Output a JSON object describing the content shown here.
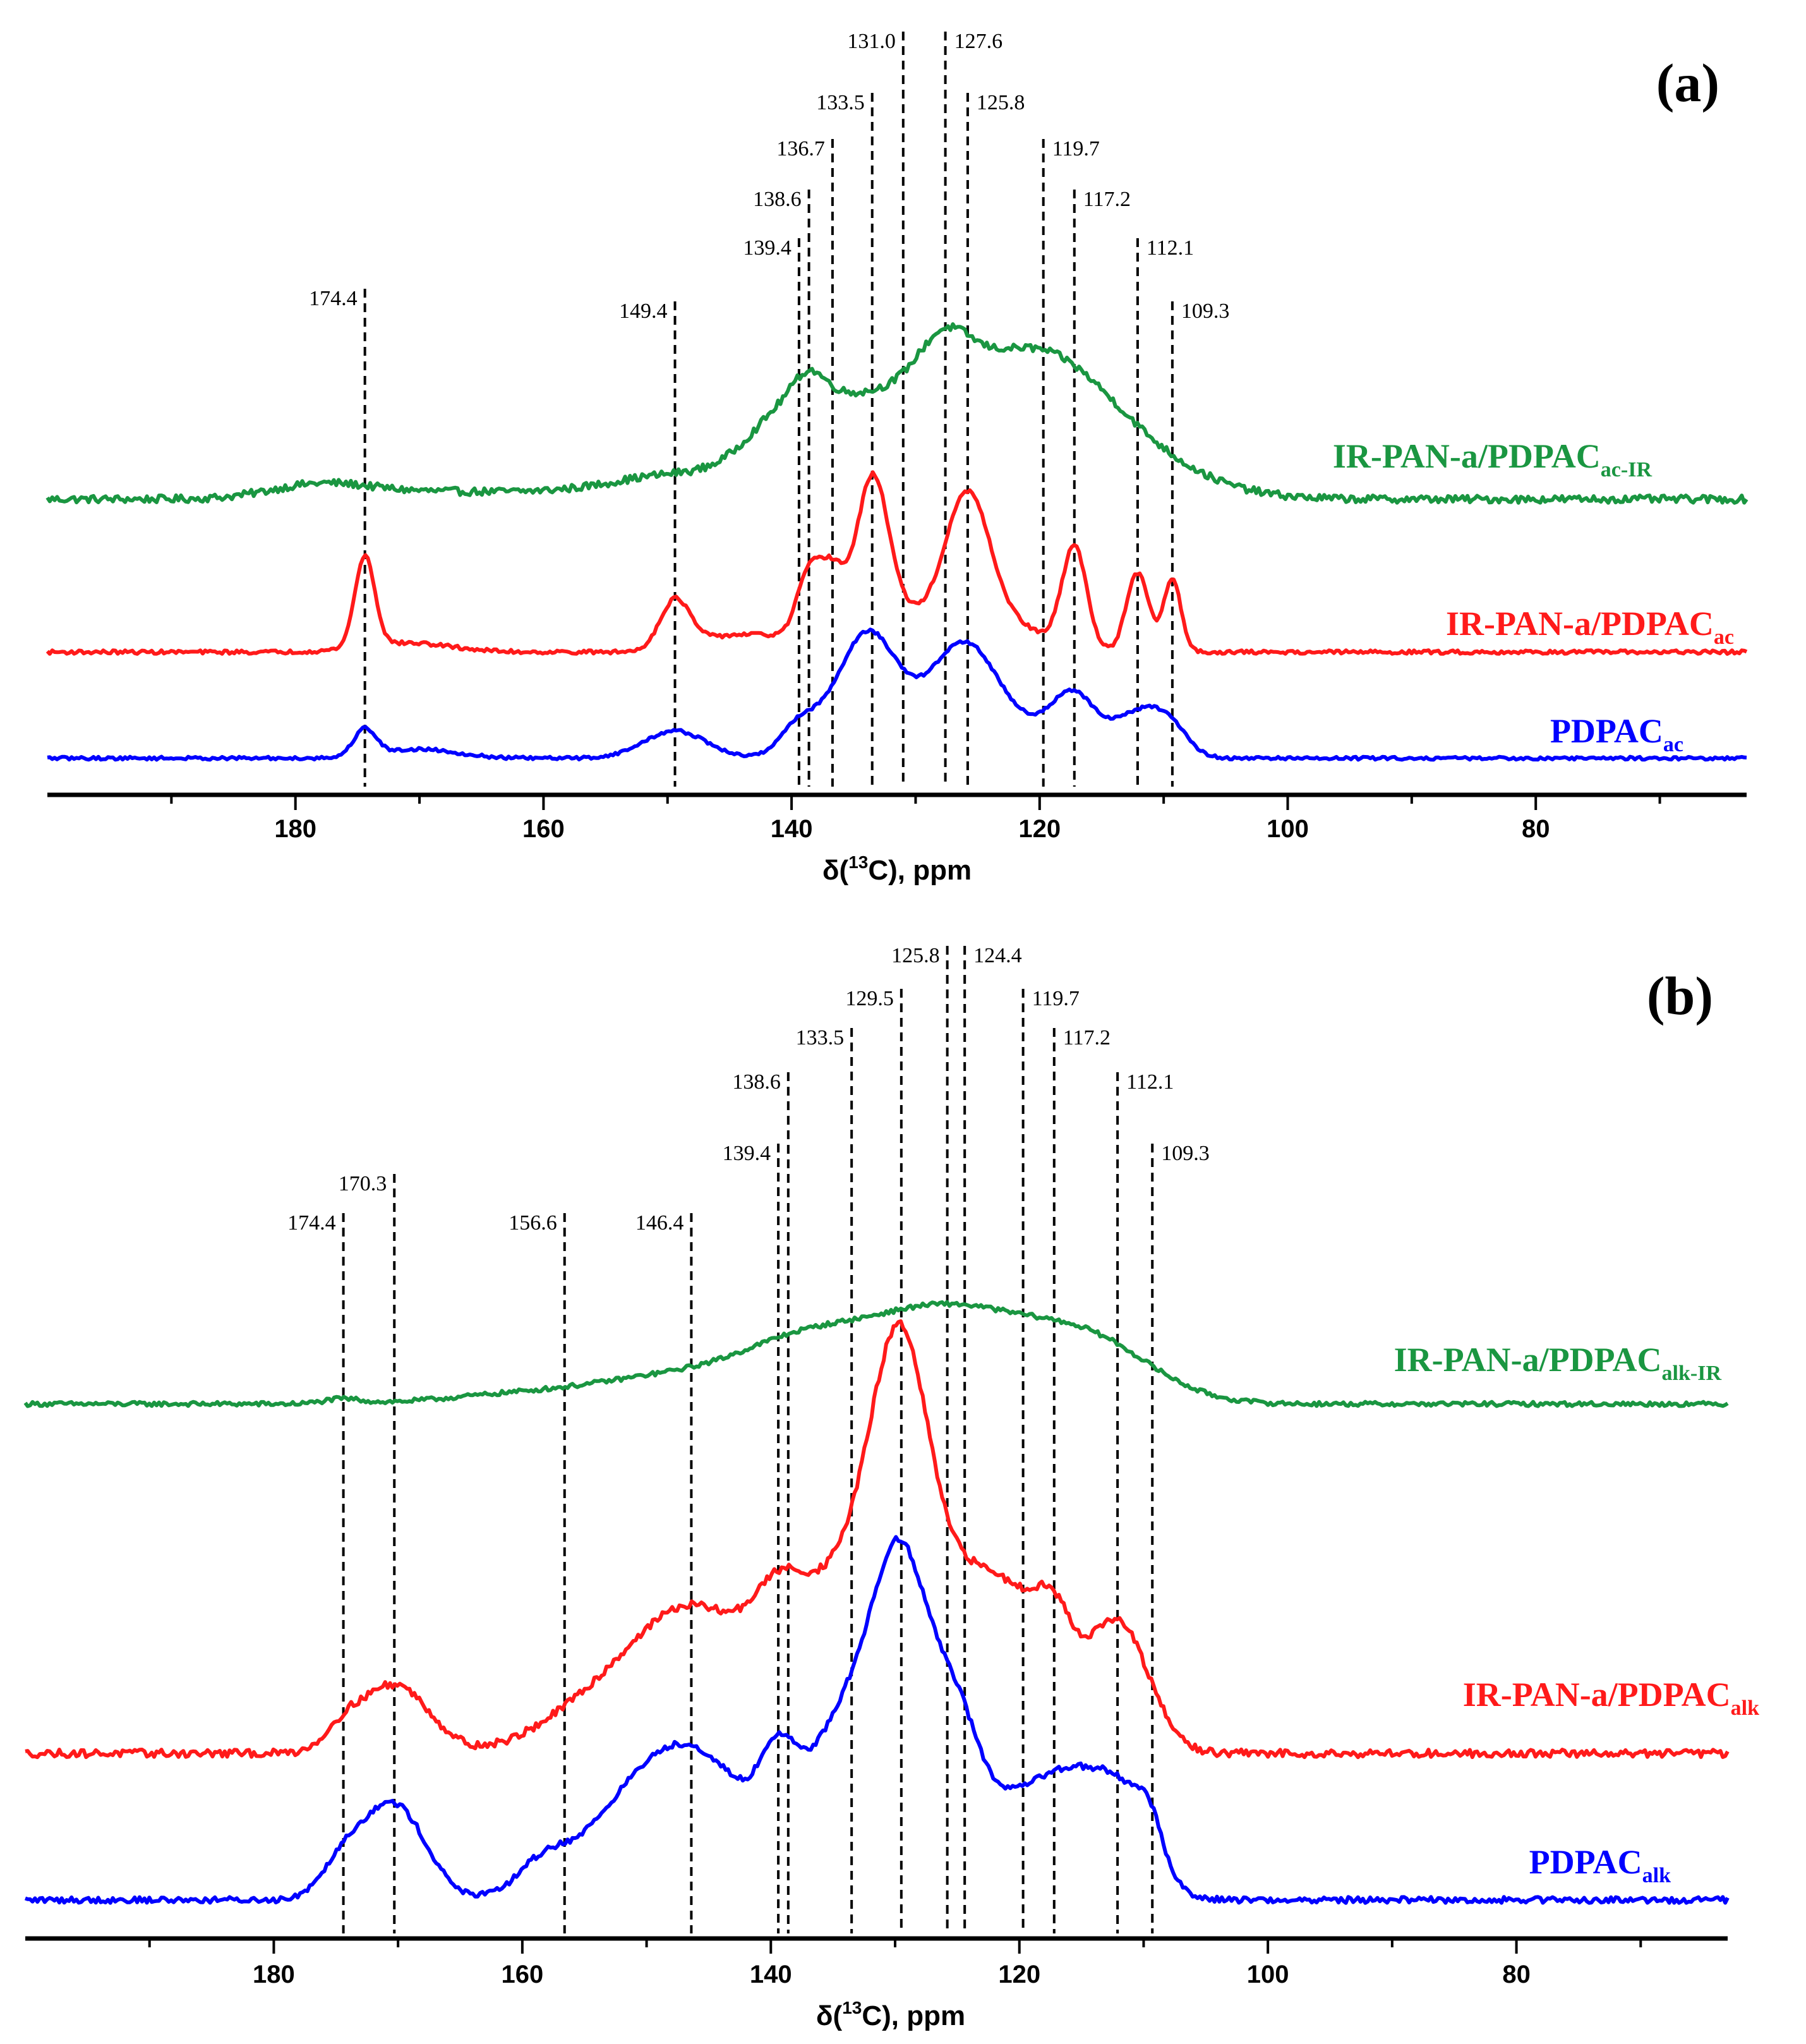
{
  "chart_data": [
    {
      "type": "line",
      "panel": "(a)",
      "xlabel_prefix": "δ(",
      "xlabel_sup": "13",
      "xlabel_suffix": "C), ppm",
      "xlim": [
        200,
        63
      ],
      "major_ticks": [
        180,
        160,
        140,
        120,
        100,
        80
      ],
      "minor_ticks": [
        190,
        170,
        150,
        130,
        110,
        90,
        70
      ],
      "reference_lines": [
        "174.4",
        "149.4",
        "139.4",
        "138.6",
        "136.7",
        "133.5",
        "131.0",
        "127.6",
        "125.8",
        "119.7",
        "117.2",
        "112.1",
        "109.3"
      ],
      "series": [
        {
          "name": "IR-PAN-a/PDPAC",
          "sub": "ac-IR",
          "color": "#1a9641",
          "baseline": 0.0,
          "noise": 0.9,
          "peaks": [
            [
              178,
              3.5,
              4.0
            ],
            [
              170,
              1.0,
              5.0
            ],
            [
              155,
              2.0,
              10.0
            ],
            [
              149.4,
              4.0,
              4.5
            ],
            [
              140,
              16.0,
              3.5
            ],
            [
              138.6,
              5.0,
              1.2
            ],
            [
              131,
              24.0,
              6.0
            ],
            [
              127.6,
              10.0,
              2.0
            ],
            [
              120,
              28.0,
              5.5
            ],
            [
              113,
              8.0,
              6.0
            ]
          ]
        },
        {
          "name": "IR-PAN-a/PDPAC",
          "sub": "ac",
          "color": "#ff1a1a",
          "baseline": 0.0,
          "noise": 0.6,
          "peaks": [
            [
              174.4,
              30.0,
              0.8
            ],
            [
              171,
              3.0,
              3.5
            ],
            [
              149.4,
              16.0,
              1.2
            ],
            [
              146.5,
              3.0,
              2.5
            ],
            [
              142,
              5.0,
              3.0
            ],
            [
              138.6,
              22.0,
              1.0
            ],
            [
              136.7,
              22.0,
              1.0
            ],
            [
              133.5,
              50.0,
              1.3
            ],
            [
              131,
              12.0,
              3.0
            ],
            [
              125.8,
              48.0,
              1.8
            ],
            [
              122,
              8.0,
              2.5
            ],
            [
              117.2,
              34.0,
              1.0
            ],
            [
              112.1,
              26.0,
              0.9
            ],
            [
              109.3,
              24.0,
              0.7
            ]
          ]
        },
        {
          "name": "PDPAC",
          "sub": "ac",
          "color": "#0000ff",
          "baseline": 0.0,
          "noise": 0.5,
          "peaks": [
            [
              174.4,
              9.0,
              0.9
            ],
            [
              170,
              3.0,
              3.0
            ],
            [
              149.4,
              9.0,
              2.5
            ],
            [
              139.5,
              10.0,
              1.5
            ],
            [
              136,
              14.0,
              2.0
            ],
            [
              133.5,
              28.0,
              2.0
            ],
            [
              129.5,
              14.0,
              3.5
            ],
            [
              125.8,
              28.0,
              2.5
            ],
            [
              121,
              8.0,
              3.0
            ],
            [
              117.2,
              18.0,
              1.8
            ],
            [
              112.1,
              14.0,
              2.0
            ],
            [
              109.5,
              8.0,
              1.5
            ]
          ]
        }
      ]
    },
    {
      "type": "line",
      "panel": "(b)",
      "xlabel_prefix": "δ(",
      "xlabel_sup": "13",
      "xlabel_suffix": "C), ppm",
      "xlim": [
        200,
        63
      ],
      "major_ticks": [
        180,
        160,
        140,
        120,
        100,
        80
      ],
      "minor_ticks": [
        190,
        170,
        150,
        130,
        110,
        90,
        70
      ],
      "reference_lines": [
        "174.4",
        "170.3",
        "156.6",
        "146.4",
        "139.4",
        "138.6",
        "133.5",
        "129.5",
        "125.8",
        "124.4",
        "119.7",
        "117.2",
        "112.1",
        "109.3"
      ],
      "series": [
        {
          "name": "IR-PAN-a/PDPAC",
          "sub": "alk-IR",
          "color": "#1a9641",
          "baseline": 0.0,
          "noise": 0.7,
          "peaks": [
            [
              174.4,
              1.5,
              1.5
            ],
            [
              160,
              3.0,
              6.0
            ],
            [
              148,
              8.0,
              6.0
            ],
            [
              138,
              14.0,
              5.0
            ],
            [
              126,
              30.0,
              7.0
            ],
            [
              114,
              16.0,
              5.0
            ]
          ]
        },
        {
          "name": "IR-PAN-a/PDPAC",
          "sub": "alk",
          "color": "#ff1a1a",
          "baseline": 0.0,
          "noise": 0.9,
          "peaks": [
            [
              174.4,
              4.0,
              1.5
            ],
            [
              170.3,
              16.0,
              2.8
            ],
            [
              156,
              5.0,
              4.0
            ],
            [
              146.4,
              34.0,
              5.5
            ],
            [
              139.4,
              14.0,
              2.0
            ],
            [
              133.5,
              40.0,
              4.0
            ],
            [
              129.5,
              68.0,
              2.3
            ],
            [
              124.4,
              30.0,
              3.0
            ],
            [
              119.7,
              26.0,
              3.0
            ],
            [
              117.2,
              14.0,
              1.5
            ],
            [
              112.1,
              30.0,
              2.5
            ]
          ]
        },
        {
          "name": "PDPAC",
          "sub": "alk",
          "color": "#0000ff",
          "baseline": 0.0,
          "noise": 0.7,
          "peaks": [
            [
              174.4,
              8.0,
              1.8
            ],
            [
              170.3,
              22.0,
              2.5
            ],
            [
              158.5,
              6.0,
              2.0
            ],
            [
              153,
              8.0,
              4.0
            ],
            [
              146.4,
              34.0,
              5.0
            ],
            [
              139.4,
              18.0,
              1.5
            ],
            [
              134,
              40.0,
              3.0
            ],
            [
              129.5,
              66.0,
              2.2
            ],
            [
              125.8,
              22.0,
              2.0
            ],
            [
              124.4,
              20.0,
              2.0
            ],
            [
              119.7,
              22.0,
              2.5
            ],
            [
              116,
              16.0,
              2.0
            ],
            [
              112.1,
              26.0,
              2.5
            ],
            [
              109.5,
              8.0,
              1.0
            ]
          ]
        }
      ]
    }
  ]
}
